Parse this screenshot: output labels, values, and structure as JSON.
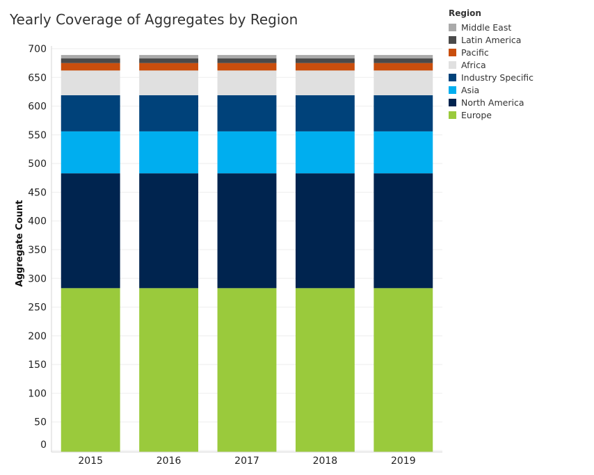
{
  "chart_data": {
    "type": "bar",
    "stacked": true,
    "title": "Yearly Coverage of Aggregates by Region",
    "xlabel": "",
    "ylabel": "Aggregate Count",
    "ylim": [
      0,
      700
    ],
    "yticks": [
      0,
      50,
      100,
      150,
      200,
      250,
      300,
      350,
      400,
      450,
      500,
      550,
      600,
      650,
      700
    ],
    "categories": [
      "2015",
      "2016",
      "2017",
      "2018",
      "2019"
    ],
    "legend_title": "Region",
    "legend_position": "top-right",
    "series": [
      {
        "name": "Europe",
        "color": "#9ACA3C",
        "values": [
          283,
          283,
          283,
          283,
          283
        ]
      },
      {
        "name": "North America",
        "color": "#00244F",
        "values": [
          200,
          200,
          200,
          200,
          200
        ]
      },
      {
        "name": "Asia",
        "color": "#00AEEF",
        "values": [
          73,
          73,
          73,
          73,
          73
        ]
      },
      {
        "name": "Industry Specific",
        "color": "#00427A",
        "values": [
          63,
          63,
          63,
          63,
          63
        ]
      },
      {
        "name": "Africa",
        "color": "#E0E0E0",
        "values": [
          43,
          43,
          43,
          43,
          43
        ]
      },
      {
        "name": "Pacific",
        "color": "#C94E0D",
        "values": [
          13,
          13,
          13,
          13,
          13
        ]
      },
      {
        "name": "Latin America",
        "color": "#4A4A4A",
        "values": [
          8,
          8,
          8,
          8,
          8
        ]
      },
      {
        "name": "Middle East",
        "color": "#AAAAAA",
        "values": [
          6,
          6,
          6,
          6,
          6
        ]
      }
    ]
  }
}
